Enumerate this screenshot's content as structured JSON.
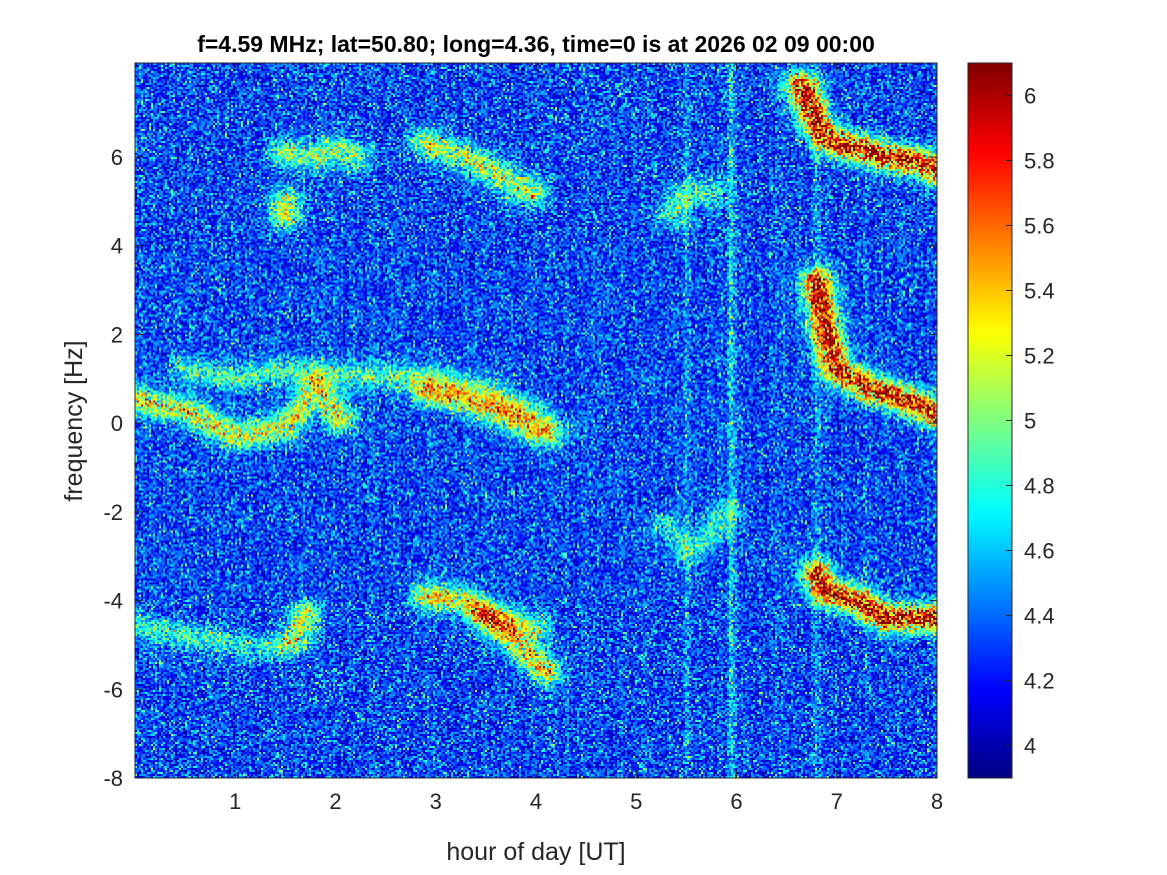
{
  "chart_data": {
    "type": "heatmap",
    "title": "f=4.59 MHz;  lat=50.80; long=4.36, time=0 is at 2026 02 09 00:00",
    "xlabel": "hour of day [UT]",
    "ylabel": "frequency [Hz]",
    "xlim": [
      0,
      8
    ],
    "ylim": [
      -8,
      8.12
    ],
    "xticks": [
      1,
      2,
      3,
      4,
      5,
      6,
      7,
      8
    ],
    "yticks": [
      -8,
      -6,
      -4,
      -2,
      0,
      2,
      4,
      6
    ],
    "colormap": "jet",
    "clim": [
      3.9,
      6.1
    ],
    "colorbar_ticks": [
      4,
      4.2,
      4.4,
      4.6,
      4.8,
      5,
      5.2,
      5.4,
      5.6,
      5.8,
      6
    ],
    "colorbar_tick_labels": [
      "4",
      "4.2",
      "4.4",
      "4.6",
      "4.8",
      "5",
      "5.2",
      "5.4",
      "5.6",
      "5.8",
      "6"
    ],
    "background_level": 4.25,
    "ridges": [
      {
        "name": "upper-doppler-trace-early",
        "peak": 5.1,
        "points": [
          [
            1.5,
            6.1
          ],
          [
            1.8,
            6.0
          ],
          [
            2.0,
            6.2
          ],
          [
            2.2,
            6.0
          ]
        ]
      },
      {
        "name": "upper-trace-3h",
        "peak": 5.2,
        "points": [
          [
            2.9,
            6.3
          ],
          [
            3.3,
            6.0
          ],
          [
            3.7,
            5.5
          ],
          [
            3.95,
            5.2
          ]
        ]
      },
      {
        "name": "spot-1.5h",
        "peak": 5.3,
        "points": [
          [
            1.5,
            5.0
          ],
          [
            1.5,
            4.7
          ]
        ]
      },
      {
        "name": "arc-5.7h",
        "peak": 4.9,
        "points": [
          [
            5.35,
            4.7
          ],
          [
            5.45,
            5.1
          ],
          [
            5.6,
            5.2
          ],
          [
            5.75,
            5.2
          ]
        ]
      },
      {
        "name": "central-upper",
        "peak": 4.9,
        "points": [
          [
            0.5,
            1.2
          ],
          [
            1.0,
            1.0
          ],
          [
            1.5,
            1.2
          ],
          [
            2.0,
            1.1
          ],
          [
            3.0,
            1.0
          ],
          [
            3.5,
            0.7
          ],
          [
            4.0,
            0.2
          ],
          [
            4.2,
            -0.2
          ]
        ]
      },
      {
        "name": "central-lower",
        "peak": 5.3,
        "points": [
          [
            0.0,
            0.5
          ],
          [
            0.5,
            0.3
          ],
          [
            1.0,
            -0.3
          ],
          [
            1.5,
            -0.1
          ],
          [
            1.65,
            0.3
          ],
          [
            1.8,
            0.8
          ],
          [
            2.05,
            0.1
          ]
        ]
      },
      {
        "name": "central-3h",
        "peak": 5.3,
        "points": [
          [
            2.9,
            0.7
          ],
          [
            3.3,
            0.5
          ],
          [
            3.7,
            0.2
          ],
          [
            4.0,
            -0.2
          ]
        ]
      },
      {
        "name": "lower-early",
        "peak": 4.8,
        "points": [
          [
            0.0,
            -4.6
          ],
          [
            0.8,
            -4.9
          ],
          [
            1.4,
            -5.1
          ]
        ]
      },
      {
        "name": "lower-spot",
        "peak": 5.2,
        "points": [
          [
            1.6,
            -4.9
          ],
          [
            1.7,
            -4.3
          ]
        ]
      },
      {
        "name": "lower-3h",
        "peak": 5.4,
        "points": [
          [
            2.9,
            -3.9
          ],
          [
            3.3,
            -4.0
          ],
          [
            3.7,
            -4.7
          ],
          [
            4.0,
            -5.4
          ],
          [
            4.1,
            -5.6
          ]
        ]
      },
      {
        "name": "lower-3h-b",
        "peak": 5.0,
        "points": [
          [
            3.5,
            -4.3
          ],
          [
            4.0,
            -4.6
          ]
        ]
      },
      {
        "name": "mid-5.5h",
        "peak": 4.8,
        "points": [
          [
            5.3,
            -2.3
          ],
          [
            5.5,
            -2.9
          ],
          [
            5.7,
            -2.6
          ],
          [
            5.9,
            -2.0
          ]
        ]
      },
      {
        "name": "dawn-top",
        "peak": 6.1,
        "points": [
          [
            6.65,
            7.6
          ],
          [
            6.8,
            6.8
          ],
          [
            6.9,
            6.4
          ],
          [
            7.2,
            6.2
          ],
          [
            7.5,
            6.0
          ],
          [
            7.8,
            5.9
          ],
          [
            8.0,
            5.7
          ]
        ]
      },
      {
        "name": "dawn-middle",
        "peak": 6.1,
        "points": [
          [
            6.8,
            3.2
          ],
          [
            6.9,
            2.0
          ],
          [
            7.0,
            1.2
          ],
          [
            7.3,
            0.8
          ],
          [
            7.6,
            0.6
          ],
          [
            8.0,
            0.2
          ]
        ]
      },
      {
        "name": "dawn-bottom",
        "peak": 6.1,
        "points": [
          [
            6.8,
            -3.4
          ],
          [
            6.9,
            -3.8
          ],
          [
            7.2,
            -4.0
          ],
          [
            7.5,
            -4.4
          ],
          [
            8.0,
            -4.4
          ]
        ]
      }
    ],
    "vertical_streaks": [
      {
        "hour": 5.5,
        "level": 4.45
      },
      {
        "hour": 5.95,
        "level": 4.6
      },
      {
        "hour": 6.8,
        "level": 4.45
      },
      {
        "hour": 7.3,
        "level": 4.4
      }
    ]
  }
}
